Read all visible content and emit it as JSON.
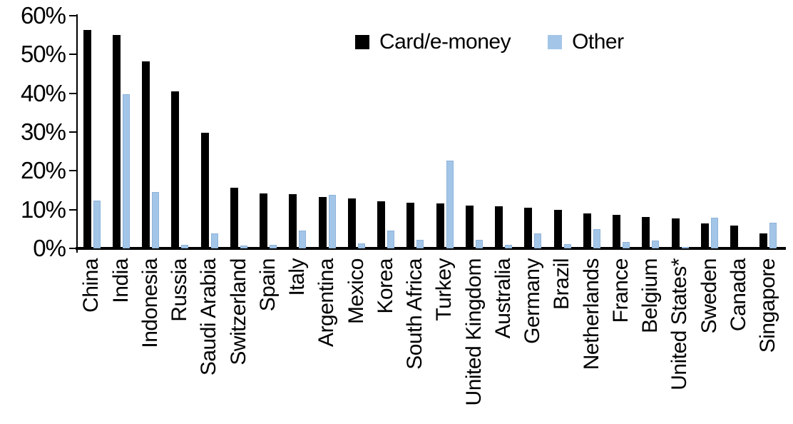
{
  "chart_data": {
    "type": "bar",
    "title": "",
    "xlabel": "",
    "ylabel": "",
    "ylim": [
      0,
      60
    ],
    "grid": false,
    "legend_position": "top-center",
    "y_tick_labels": [
      "0%",
      "10%",
      "20%",
      "30%",
      "40%",
      "50%",
      "60%"
    ],
    "categories": [
      "China",
      "India",
      "Indonesia",
      "Russia",
      "Saudi Arabia",
      "Switzerland",
      "Spain",
      "Italy",
      "Argentina",
      "Mexico",
      "Korea",
      "South Africa",
      "Turkey",
      "United Kingdom",
      "Australia",
      "Germany",
      "Brazil",
      "Netherlands",
      "France",
      "Belgium",
      "United States*",
      "Sweden",
      "Canada",
      "Singapore"
    ],
    "series": [
      {
        "name": "Card/e-money",
        "color": "#000000",
        "values": [
          56.3,
          55.1,
          48.3,
          40.5,
          29.8,
          15.6,
          14.2,
          14.0,
          13.3,
          12.9,
          12.2,
          11.7,
          11.6,
          11.0,
          10.8,
          10.5,
          9.9,
          9.1,
          8.6,
          8.1,
          7.8,
          6.5,
          5.9,
          3.8
        ]
      },
      {
        "name": "Other",
        "color": "#a3c6e8",
        "values": [
          12.3,
          39.7,
          14.5,
          1.0,
          3.9,
          0.8,
          1.0,
          4.6,
          13.8,
          1.3,
          4.6,
          2.3,
          22.6,
          2.2,
          1.0,
          3.9,
          1.1,
          4.9,
          1.6,
          2.0,
          0.3,
          8.0,
          0.0,
          6.6
        ]
      }
    ]
  }
}
